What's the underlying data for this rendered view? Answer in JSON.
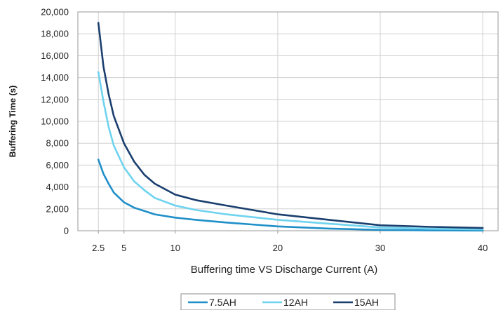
{
  "chart_data": {
    "type": "line",
    "xlabel": "Buffering time  VS  Discharge Current (A)",
    "ylabel": "Buffering Time (s)",
    "xlim": [
      0.5,
      41.5
    ],
    "ylim": [
      0,
      20000
    ],
    "x_ticks": [
      2.5,
      5,
      10,
      20,
      30,
      40
    ],
    "x_tick_labels": [
      "2.5",
      "5",
      "10",
      "20",
      "30",
      "40"
    ],
    "y_ticks": [
      0,
      2000,
      4000,
      6000,
      8000,
      10000,
      12000,
      14000,
      16000,
      18000,
      20000
    ],
    "y_tick_labels": [
      "0",
      "2,000",
      "4,000",
      "6,000",
      "8,000",
      "10,000",
      "12,000",
      "14,000",
      "16,000",
      "18,000",
      "20,000"
    ],
    "grid": true,
    "legend_position": "bottom",
    "series": [
      {
        "name": "7.5AH",
        "color": "#1f8fc8",
        "x": [
          2.5,
          3,
          3.5,
          4,
          5,
          6,
          7,
          8,
          10,
          12,
          15,
          20,
          25,
          30,
          35,
          40
        ],
        "y": [
          6500,
          5200,
          4300,
          3500,
          2600,
          2100,
          1800,
          1500,
          1200,
          1000,
          750,
          400,
          200,
          80,
          40,
          20
        ]
      },
      {
        "name": "12AH",
        "color": "#6fd3ef",
        "x": [
          2.5,
          3,
          3.5,
          4,
          5,
          6,
          7,
          8,
          10,
          12,
          15,
          20,
          25,
          30,
          35,
          40
        ],
        "y": [
          14500,
          11800,
          9500,
          7800,
          5800,
          4500,
          3700,
          3000,
          2300,
          1900,
          1500,
          1000,
          650,
          300,
          180,
          120
        ]
      },
      {
        "name": "15AH",
        "color": "#1a3f6e",
        "x": [
          2.5,
          3,
          3.5,
          4,
          5,
          6,
          7,
          8,
          10,
          12,
          15,
          20,
          25,
          30,
          35,
          40
        ],
        "y": [
          19000,
          15000,
          12500,
          10500,
          8000,
          6300,
          5100,
          4300,
          3300,
          2800,
          2300,
          1500,
          1000,
          500,
          350,
          250
        ]
      }
    ]
  }
}
